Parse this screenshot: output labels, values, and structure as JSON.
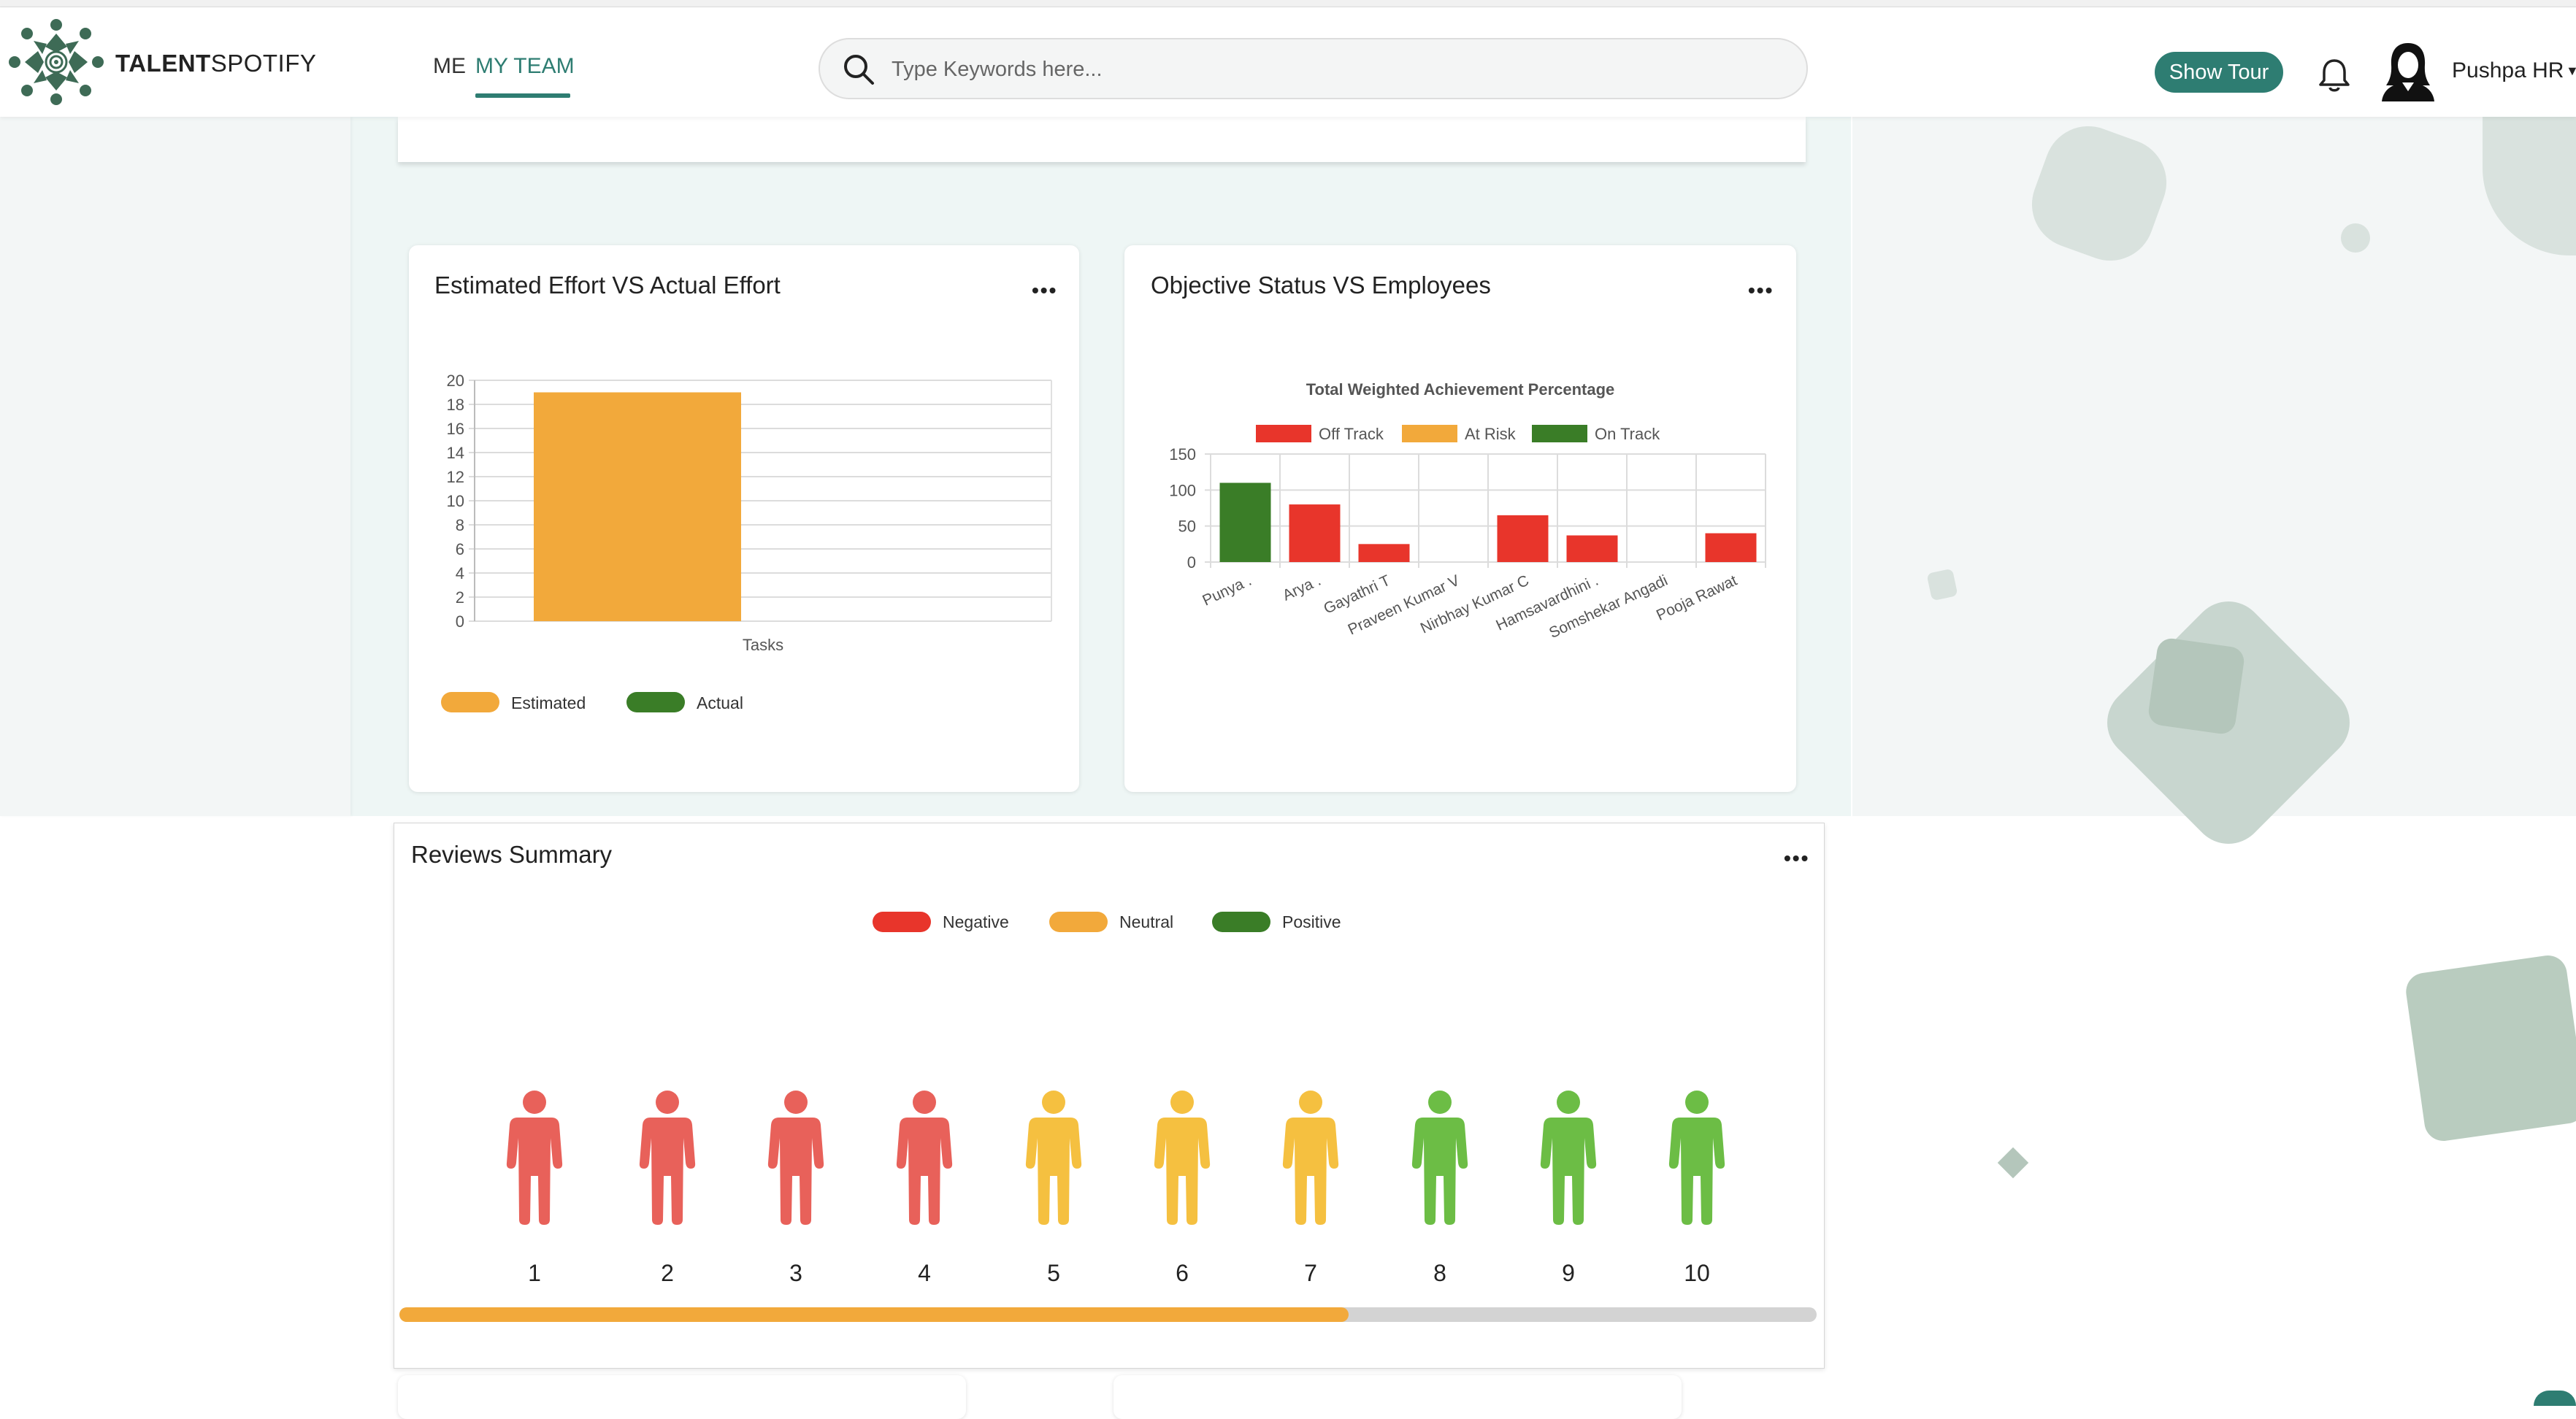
{
  "header": {
    "brand_bold": "TALENT",
    "brand_light": "SPOTIFY",
    "nav_me": "ME",
    "nav_my_team": "MY TEAM",
    "search_placeholder": "Type Keywords here...",
    "show_tour": "Show Tour",
    "user_name": "Pushpa HR"
  },
  "effort_card": {
    "title": "Estimated Effort VS Actual Effort",
    "menu": "•••",
    "legend": [
      {
        "label": "Estimated",
        "color": "#f2a93b"
      },
      {
        "label": "Actual",
        "color": "#3a7d27"
      }
    ]
  },
  "objective_card": {
    "title": "Objective Status VS Employees",
    "menu": "•••",
    "legend": [
      {
        "label": "Off Track",
        "color": "#e8352b"
      },
      {
        "label": "At Risk",
        "color": "#f2a93b"
      },
      {
        "label": "On Track",
        "color": "#3a7d27"
      }
    ]
  },
  "reviews": {
    "title": "Reviews Summary",
    "menu": "•••",
    "legend": [
      {
        "label": "Negative",
        "color": "#e8352b"
      },
      {
        "label": "Neutral",
        "color": "#f2a93b"
      },
      {
        "label": "Positive",
        "color": "#3a7d27"
      }
    ],
    "people": [
      {
        "n": "1",
        "sentiment": "negative"
      },
      {
        "n": "2",
        "sentiment": "negative"
      },
      {
        "n": "3",
        "sentiment": "negative"
      },
      {
        "n": "4",
        "sentiment": "negative"
      },
      {
        "n": "5",
        "sentiment": "neutral"
      },
      {
        "n": "6",
        "sentiment": "neutral"
      },
      {
        "n": "7",
        "sentiment": "neutral"
      },
      {
        "n": "8",
        "sentiment": "positive"
      },
      {
        "n": "9",
        "sentiment": "positive"
      },
      {
        "n": "10",
        "sentiment": "positive"
      }
    ],
    "progress_fraction": 0.67,
    "colors": {
      "negative": "#e8615a",
      "neutral": "#f5c040",
      "positive": "#6cbd45"
    }
  },
  "chart_data": [
    {
      "type": "bar",
      "categories": [
        "Tasks"
      ],
      "series": [
        {
          "name": "Estimated",
          "values": [
            19
          ]
        },
        {
          "name": "Actual",
          "values": [
            0
          ]
        }
      ],
      "ylim": [
        0,
        20
      ],
      "yticks": [
        "0",
        "2",
        "4",
        "6",
        "8",
        "10",
        "12",
        "14",
        "16",
        "18",
        "20"
      ],
      "grid": true,
      "legend": "bottom-left"
    },
    {
      "type": "bar",
      "title": "Total Weighted Achievement Percentage",
      "categories": [
        "Punya .",
        "Arya .",
        "Gayathri T",
        "Praveen Kumar V",
        "Nirbhay Kumar C",
        "Hamsavardhini .",
        "Somshekar Angadi",
        "Pooja Rawat"
      ],
      "values": [
        110,
        80,
        25,
        0,
        65,
        37,
        0,
        40
      ],
      "status": [
        "On Track",
        "Off Track",
        "Off Track",
        "",
        "Off Track",
        "Off Track",
        "",
        "Off Track"
      ],
      "ylim": [
        0,
        150
      ],
      "yticks": [
        "0",
        "50",
        "100",
        "150"
      ],
      "grid": true,
      "legend": "top"
    }
  ]
}
